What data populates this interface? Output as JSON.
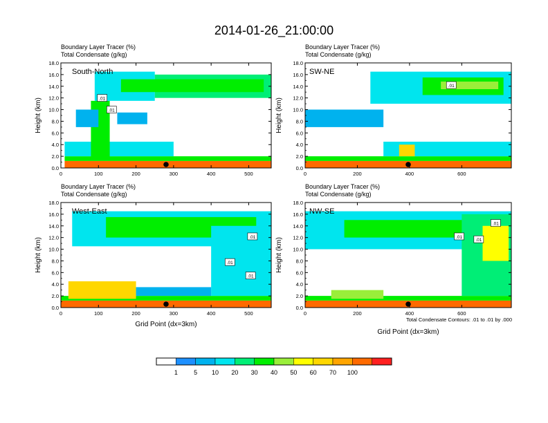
{
  "chart_data": {
    "type": "heatmap",
    "title": "2014-01-26_21:00:00",
    "footnote": "Total Condensate Contours: .01 to .01 by .000",
    "shared_xlabel": "Grid Point (dx=3km)",
    "colorbar": {
      "labels": [
        "1",
        "5",
        "10",
        "20",
        "30",
        "40",
        "50",
        "60",
        "70",
        "100"
      ],
      "colors": [
        "#ffffff",
        "#1e90ff",
        "#00b2ee",
        "#00e5ee",
        "#00ee76",
        "#00ee00",
        "#9aee3a",
        "#ffff00",
        "#ffd700",
        "#ffa500",
        "#ff6a00",
        "#ff2020"
      ]
    },
    "panels": [
      {
        "id": "sn",
        "subtitle_line1": "Boundary Layer Tracer   (%)",
        "subtitle_line2": "Total Condensate   (g/kg)",
        "label": "South-North",
        "ylabel": "Height (km)",
        "xlabel": "",
        "xlim": [
          0,
          560
        ],
        "ylim": [
          0,
          18
        ],
        "xticks": [
          0,
          100,
          200,
          300,
          400,
          500
        ],
        "yticks": [
          0,
          2,
          4,
          6,
          8,
          10,
          12,
          14,
          16,
          18
        ],
        "ytick_labels": [
          "0.0",
          "2.0",
          "4.0",
          "6.0",
          "8.0",
          "10.0",
          "12.0",
          "14.0",
          "16.0",
          "18.0"
        ],
        "marker_x": 280,
        "contour_labels": [
          {
            "x": 110,
            "y": 12.0,
            "text": ".01"
          },
          {
            "x": 135,
            "y": 10.0,
            "text": ".01"
          }
        ],
        "bands": [
          {
            "x0": 10,
            "x1": 560,
            "y0": 0,
            "y1": 1.2,
            "c": 10
          },
          {
            "x0": 10,
            "x1": 560,
            "y0": 1.2,
            "y1": 2.0,
            "c": 5
          },
          {
            "x0": 10,
            "x1": 300,
            "y0": 2.0,
            "y1": 4.5,
            "c": 3
          },
          {
            "x0": 80,
            "x1": 130,
            "y0": 1.5,
            "y1": 11.5,
            "c": 5
          },
          {
            "x0": 90,
            "x1": 250,
            "y0": 11.5,
            "y1": 16.5,
            "c": 3
          },
          {
            "x0": 250,
            "x1": 560,
            "y0": 12.0,
            "y1": 16.0,
            "c": 4
          },
          {
            "x0": 160,
            "x1": 540,
            "y0": 13.0,
            "y1": 15.2,
            "c": 5
          },
          {
            "x0": 40,
            "x1": 100,
            "y0": 7.0,
            "y1": 10.0,
            "c": 2
          },
          {
            "x0": 150,
            "x1": 230,
            "y0": 7.5,
            "y1": 9.5,
            "c": 2
          }
        ]
      },
      {
        "id": "swne",
        "subtitle_line1": "Boundary Layer Tracer   (%)",
        "subtitle_line2": "Total Condensate   (g/kg)",
        "label": "SW-NE",
        "ylabel": "Height (km)",
        "xlabel": "",
        "xlim": [
          0,
          790
        ],
        "ylim": [
          0,
          18
        ],
        "xticks": [
          0,
          200,
          400,
          600
        ],
        "yticks": [
          0,
          2,
          4,
          6,
          8,
          10,
          12,
          14,
          16,
          18
        ],
        "ytick_labels": [
          "0.0",
          "2.0",
          "4.0",
          "6.0",
          "8.0",
          "10.0",
          "12.0",
          "14.0",
          "16.0",
          "18.0"
        ],
        "marker_x": 395,
        "contour_labels": [
          {
            "x": 560,
            "y": 14.2,
            "text": ".01"
          }
        ],
        "bands": [
          {
            "x0": 0,
            "x1": 790,
            "y0": 0,
            "y1": 1.2,
            "c": 10
          },
          {
            "x0": 0,
            "x1": 790,
            "y0": 1.2,
            "y1": 2.0,
            "c": 5
          },
          {
            "x0": 300,
            "x1": 790,
            "y0": 2.0,
            "y1": 4.5,
            "c": 3
          },
          {
            "x0": 0,
            "x1": 300,
            "y0": 7.0,
            "y1": 10.0,
            "c": 2
          },
          {
            "x0": 250,
            "x1": 790,
            "y0": 11.0,
            "y1": 16.5,
            "c": 3
          },
          {
            "x0": 450,
            "x1": 760,
            "y0": 12.5,
            "y1": 15.5,
            "c": 5
          },
          {
            "x0": 520,
            "x1": 740,
            "y0": 13.5,
            "y1": 14.8,
            "c": 6
          },
          {
            "x0": 360,
            "x1": 420,
            "y0": 2.0,
            "y1": 4.0,
            "c": 8
          }
        ]
      },
      {
        "id": "we",
        "subtitle_line1": "Boundary Layer Tracer   (%)",
        "subtitle_line2": "Total Condensate   (g/kg)",
        "label": "West-East",
        "ylabel": "Height (km)",
        "xlabel": "Grid Point (dx=3km)",
        "xlim": [
          0,
          560
        ],
        "ylim": [
          0,
          18
        ],
        "xticks": [
          0,
          100,
          200,
          300,
          400,
          500
        ],
        "yticks": [
          0,
          2,
          4,
          6,
          8,
          10,
          12,
          14,
          16,
          18
        ],
        "ytick_labels": [
          "0.0",
          "2.0",
          "4.0",
          "6.0",
          "8.0",
          "10.0",
          "12.0",
          "14.0",
          "16.0",
          "18.0"
        ],
        "marker_x": 280,
        "contour_labels": [
          {
            "x": 510,
            "y": 12.2,
            "text": ".01"
          },
          {
            "x": 450,
            "y": 7.8,
            "text": ".01"
          },
          {
            "x": 505,
            "y": 5.5,
            "text": ".01"
          }
        ],
        "bands": [
          {
            "x0": 0,
            "x1": 560,
            "y0": 0,
            "y1": 1.2,
            "c": 10
          },
          {
            "x0": 0,
            "x1": 560,
            "y0": 1.2,
            "y1": 2.0,
            "c": 5
          },
          {
            "x0": 20,
            "x1": 200,
            "y0": 1.5,
            "y1": 4.5,
            "c": 8
          },
          {
            "x0": 30,
            "x1": 560,
            "y0": 10.5,
            "y1": 16.5,
            "c": 3
          },
          {
            "x0": 120,
            "x1": 520,
            "y0": 12.0,
            "y1": 15.5,
            "c": 5
          },
          {
            "x0": 400,
            "x1": 560,
            "y0": 2.0,
            "y1": 14.0,
            "c": 3
          },
          {
            "x0": 200,
            "x1": 400,
            "y0": 2.0,
            "y1": 3.5,
            "c": 2
          }
        ]
      },
      {
        "id": "nwse",
        "subtitle_line1": "Boundary Layer Tracer   (%)",
        "subtitle_line2": "Total Condensate   (g/kg)",
        "label": "NW-SE",
        "ylabel": "Height (km)",
        "xlabel": "",
        "xlim": [
          0,
          790
        ],
        "ylim": [
          0,
          18
        ],
        "xticks": [
          0,
          200,
          400,
          600
        ],
        "yticks": [
          0,
          2,
          4,
          6,
          8,
          10,
          12,
          14,
          16,
          18
        ],
        "ytick_labels": [
          "0.0",
          "2.0",
          "4.0",
          "6.0",
          "8.0",
          "10.0",
          "12.0",
          "14.0",
          "16.0",
          "18.0"
        ],
        "marker_x": 395,
        "contour_labels": [
          {
            "x": 730,
            "y": 14.5,
            "text": ".01"
          },
          {
            "x": 590,
            "y": 12.2,
            "text": ".01"
          },
          {
            "x": 665,
            "y": 11.7,
            "text": ".01"
          }
        ],
        "bands": [
          {
            "x0": 0,
            "x1": 790,
            "y0": 0,
            "y1": 1.2,
            "c": 10
          },
          {
            "x0": 0,
            "x1": 790,
            "y0": 1.2,
            "y1": 2.0,
            "c": 5
          },
          {
            "x0": 100,
            "x1": 300,
            "y0": 1.5,
            "y1": 3.0,
            "c": 6
          },
          {
            "x0": 0,
            "x1": 790,
            "y0": 10.0,
            "y1": 16.5,
            "c": 3
          },
          {
            "x0": 150,
            "x1": 700,
            "y0": 12.0,
            "y1": 15.0,
            "c": 5
          },
          {
            "x0": 600,
            "x1": 790,
            "y0": 2.0,
            "y1": 16.0,
            "c": 4
          },
          {
            "x0": 680,
            "x1": 780,
            "y0": 8.0,
            "y1": 14.0,
            "c": 7
          }
        ]
      }
    ]
  }
}
